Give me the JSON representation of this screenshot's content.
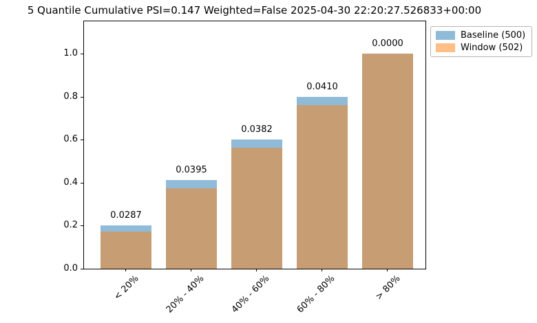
{
  "figure": {
    "title": "5 Quantile Cumulative PSI=0.147 Weighted=False 2025-04-30 22:20:27.526833+00:00"
  },
  "legend": {
    "items": [
      {
        "label": "Baseline (500)",
        "color": "#1f77b4"
      },
      {
        "label": "Window (502)",
        "color": "#ff7f0e"
      }
    ]
  },
  "chart_data": {
    "type": "bar",
    "title": "5 Quantile Cumulative PSI=0.147 Weighted=False 2025-04-30 22:20:27.526833+00:00",
    "psi": 0.147,
    "weighted": "False",
    "timestamp": "2025-04-30 22:20:27.526833+00:00",
    "categories": [
      "< 20%",
      "20% - 40%",
      "40% - 60%",
      "60% - 80%",
      "> 80%"
    ],
    "series": [
      {
        "name": "Baseline (500)",
        "count": 500,
        "color": "#1f77b4",
        "alpha": 0.5,
        "values": [
          0.2,
          0.412,
          0.6,
          0.8,
          1.0
        ]
      },
      {
        "name": "Window (502)",
        "count": 502,
        "color": "#ff7f0e",
        "alpha": 0.5,
        "values": [
          0.1713,
          0.3725,
          0.5618,
          0.759,
          1.0
        ]
      }
    ],
    "bar_annotations": [
      "0.0287",
      "0.0395",
      "0.0382",
      "0.0410",
      "0.0000"
    ],
    "ylabel": "",
    "xlabel": "",
    "yticks": [
      0.0,
      0.2,
      0.4,
      0.6,
      0.8,
      1.0
    ],
    "ylim": [
      0,
      1.155
    ],
    "grid": false,
    "legend_position": "upper-right-outside",
    "render_style": "overlaid translucent bars (not stacked)"
  }
}
